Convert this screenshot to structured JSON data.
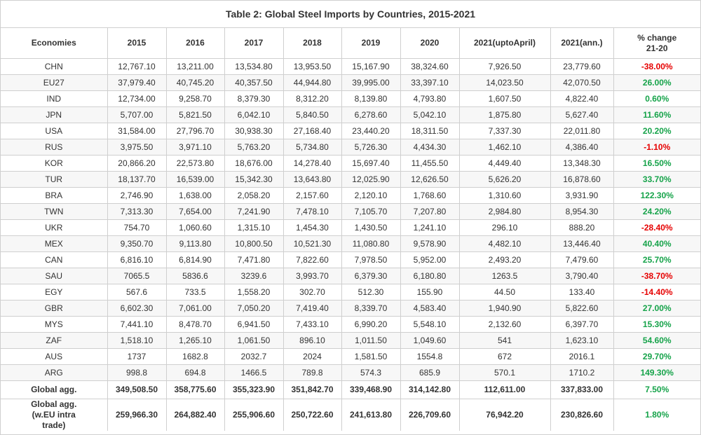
{
  "title": "Table 2: Global Steel Imports by Countries, 2015-2021",
  "headers": {
    "economies": "Economies",
    "y2015": "2015",
    "y2016": "2016",
    "y2017": "2017",
    "y2018": "2018",
    "y2019": "2019",
    "y2020": "2020",
    "y2021_upto": "2021(uptoApril)",
    "y2021_ann": "2021(ann.)",
    "pct_change": "% change 21-20"
  },
  "colors": {
    "negative": "#e60000",
    "positive": "#16a34a"
  },
  "rows": [
    [
      "CHN",
      "12,767.10",
      "13,211.00",
      "13,534.80",
      "13,953.50",
      "15,167.90",
      "38,324.60",
      "7,926.50",
      "23,779.60",
      "-38.00%"
    ],
    [
      "EU27",
      "37,979.40",
      "40,745.20",
      "40,357.50",
      "44,944.80",
      "39,995.00",
      "33,397.10",
      "14,023.50",
      "42,070.50",
      "26.00%"
    ],
    [
      "IND",
      "12,734.00",
      "9,258.70",
      "8,379.30",
      "8,312.20",
      "8,139.80",
      "4,793.80",
      "1,607.50",
      "4,822.40",
      "0.60%"
    ],
    [
      "JPN",
      "5,707.00",
      "5,821.50",
      "6,042.10",
      "5,840.50",
      "6,278.60",
      "5,042.10",
      "1,875.80",
      "5,627.40",
      "11.60%"
    ],
    [
      "USA",
      "31,584.00",
      "27,796.70",
      "30,938.30",
      "27,168.40",
      "23,440.20",
      "18,311.50",
      "7,337.30",
      "22,011.80",
      "20.20%"
    ],
    [
      "RUS",
      "3,975.50",
      "3,971.10",
      "5,763.20",
      "5,734.80",
      "5,726.30",
      "4,434.30",
      "1,462.10",
      "4,386.40",
      "-1.10%"
    ],
    [
      "KOR",
      "20,866.20",
      "22,573.80",
      "18,676.00",
      "14,278.40",
      "15,697.40",
      "11,455.50",
      "4,449.40",
      "13,348.30",
      "16.50%"
    ],
    [
      "TUR",
      "18,137.70",
      "16,539.00",
      "15,342.30",
      "13,643.80",
      "12,025.90",
      "12,626.50",
      "5,626.20",
      "16,878.60",
      "33.70%"
    ],
    [
      "BRA",
      "2,746.90",
      "1,638.00",
      "2,058.20",
      "2,157.60",
      "2,120.10",
      "1,768.60",
      "1,310.60",
      "3,931.90",
      "122.30%"
    ],
    [
      "TWN",
      "7,313.30",
      "7,654.00",
      "7,241.90",
      "7,478.10",
      "7,105.70",
      "7,207.80",
      "2,984.80",
      "8,954.30",
      "24.20%"
    ],
    [
      "UKR",
      "754.70",
      "1,060.60",
      "1,315.10",
      "1,454.30",
      "1,430.50",
      "1,241.10",
      "296.10",
      "888.20",
      "-28.40%"
    ],
    [
      "MEX",
      "9,350.70",
      "9,113.80",
      "10,800.50",
      "10,521.30",
      "11,080.80",
      "9,578.90",
      "4,482.10",
      "13,446.40",
      "40.40%"
    ],
    [
      "CAN",
      "6,816.10",
      "6,814.90",
      "7,471.80",
      "7,822.60",
      "7,978.50",
      "5,952.00",
      "2,493.20",
      "7,479.60",
      "25.70%"
    ],
    [
      "SAU",
      "7065.5",
      "5836.6",
      "3239.6",
      "3,993.70",
      "6,379.30",
      "6,180.80",
      "1263.5",
      "3,790.40",
      "-38.70%"
    ],
    [
      "EGY",
      "567.6",
      "733.5",
      "1,558.20",
      "302.70",
      "512.30",
      "155.90",
      "44.50",
      "133.40",
      "-14.40%"
    ],
    [
      "GBR",
      "6,602.30",
      "7,061.00",
      "7,050.20",
      "7,419.40",
      "8,339.70",
      "4,583.40",
      "1,940.90",
      "5,822.60",
      "27.00%"
    ],
    [
      "MYS",
      "7,441.10",
      "8,478.70",
      "6,941.50",
      "7,433.10",
      "6,990.20",
      "5,548.10",
      "2,132.60",
      "6,397.70",
      "15.30%"
    ],
    [
      "ZAF",
      "1,518.10",
      "1,265.10",
      "1,061.50",
      "896.10",
      "1,011.50",
      "1,049.60",
      "541",
      "1,623.10",
      "54.60%"
    ],
    [
      "AUS",
      "1737",
      "1682.8",
      "2032.7",
      "2024",
      "1,581.50",
      "1554.8",
      "672",
      "2016.1",
      "29.70%"
    ],
    [
      "ARG",
      "998.8",
      "694.8",
      "1466.5",
      "789.8",
      "574.3",
      "685.9",
      "570.1",
      "1710.2",
      "149.30%"
    ]
  ],
  "totals": [
    [
      "Global agg.",
      "349,508.50",
      "358,775.60",
      "355,323.90",
      "351,842.70",
      "339,468.90",
      "314,142.80",
      "112,611.00",
      "337,833.00",
      "7.50%"
    ],
    [
      "Global agg. (w.EU intra trade)",
      "259,966.30",
      "264,882.40",
      "255,906.60",
      "250,722.60",
      "241,613.80",
      "226,709.60",
      "76,942.20",
      "230,826.60",
      "1.80%"
    ]
  ]
}
